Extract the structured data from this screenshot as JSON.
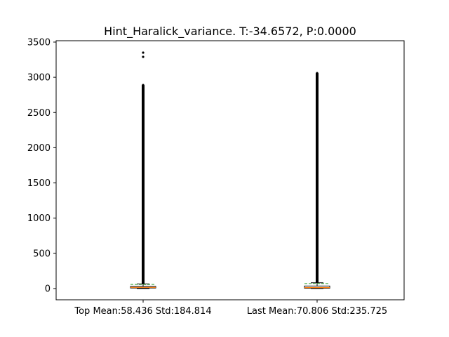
{
  "chart_data": {
    "type": "box",
    "title": "Hint_Haralick_variance. T:-34.6572, P:0.0000",
    "xlabel": "",
    "ylabel": "",
    "ylim": [
      -165,
      3500
    ],
    "y_ticks": [
      0,
      500,
      1000,
      1500,
      2000,
      2500,
      3000,
      3500
    ],
    "categories": [
      "Top Mean:58.436 Std:184.814",
      "Last Mean:70.806 Std:235.725"
    ],
    "boxes": [
      {
        "label": "Top Mean:58.436 Std:184.814",
        "q1": 8,
        "median": 17,
        "q3": 30,
        "mean": 58.436,
        "whisker_low": 0,
        "whisker_high": 66,
        "outlier_range": [
          66,
          2890
        ],
        "isolated_outliers": [
          3290,
          3350
        ]
      },
      {
        "label": "Last Mean:70.806 Std:235.725",
        "q1": 5,
        "median": 14,
        "q3": 36,
        "mean": 70.806,
        "whisker_low": 0,
        "whisker_high": 82,
        "outlier_range": [
          82,
          3060
        ],
        "isolated_outliers": []
      }
    ],
    "colors": {
      "median": "#ff7f0e",
      "mean": "#2ca02c",
      "box": "#000000",
      "outlier": "#000000"
    },
    "grid": false,
    "legend": "none"
  }
}
